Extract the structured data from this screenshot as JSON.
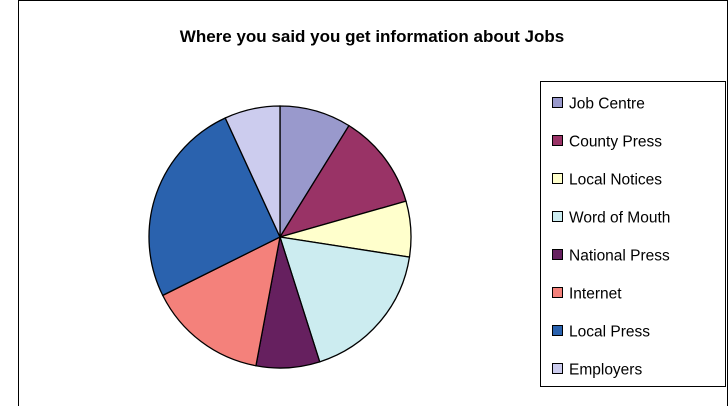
{
  "chart_data": {
    "type": "pie",
    "title": "Where you said you get information about Jobs",
    "legend_position": "right",
    "series": [
      {
        "label": "Job Centre",
        "value": 9,
        "color": "#9999CC"
      },
      {
        "label": "County Press",
        "value": 12,
        "color": "#993366"
      },
      {
        "label": "Local Notices",
        "value": 7,
        "color": "#FFFFCC"
      },
      {
        "label": "Word of Mouth",
        "value": 18,
        "color": "#CCECF0"
      },
      {
        "label": "National Press",
        "value": 8,
        "color": "#66205F"
      },
      {
        "label": "Internet",
        "value": 15,
        "color": "#F4817B"
      },
      {
        "label": "Local Press",
        "value": 26,
        "color": "#2A62AE"
      },
      {
        "label": "Employers",
        "value": 7,
        "color": "#CCCCEE"
      }
    ]
  }
}
